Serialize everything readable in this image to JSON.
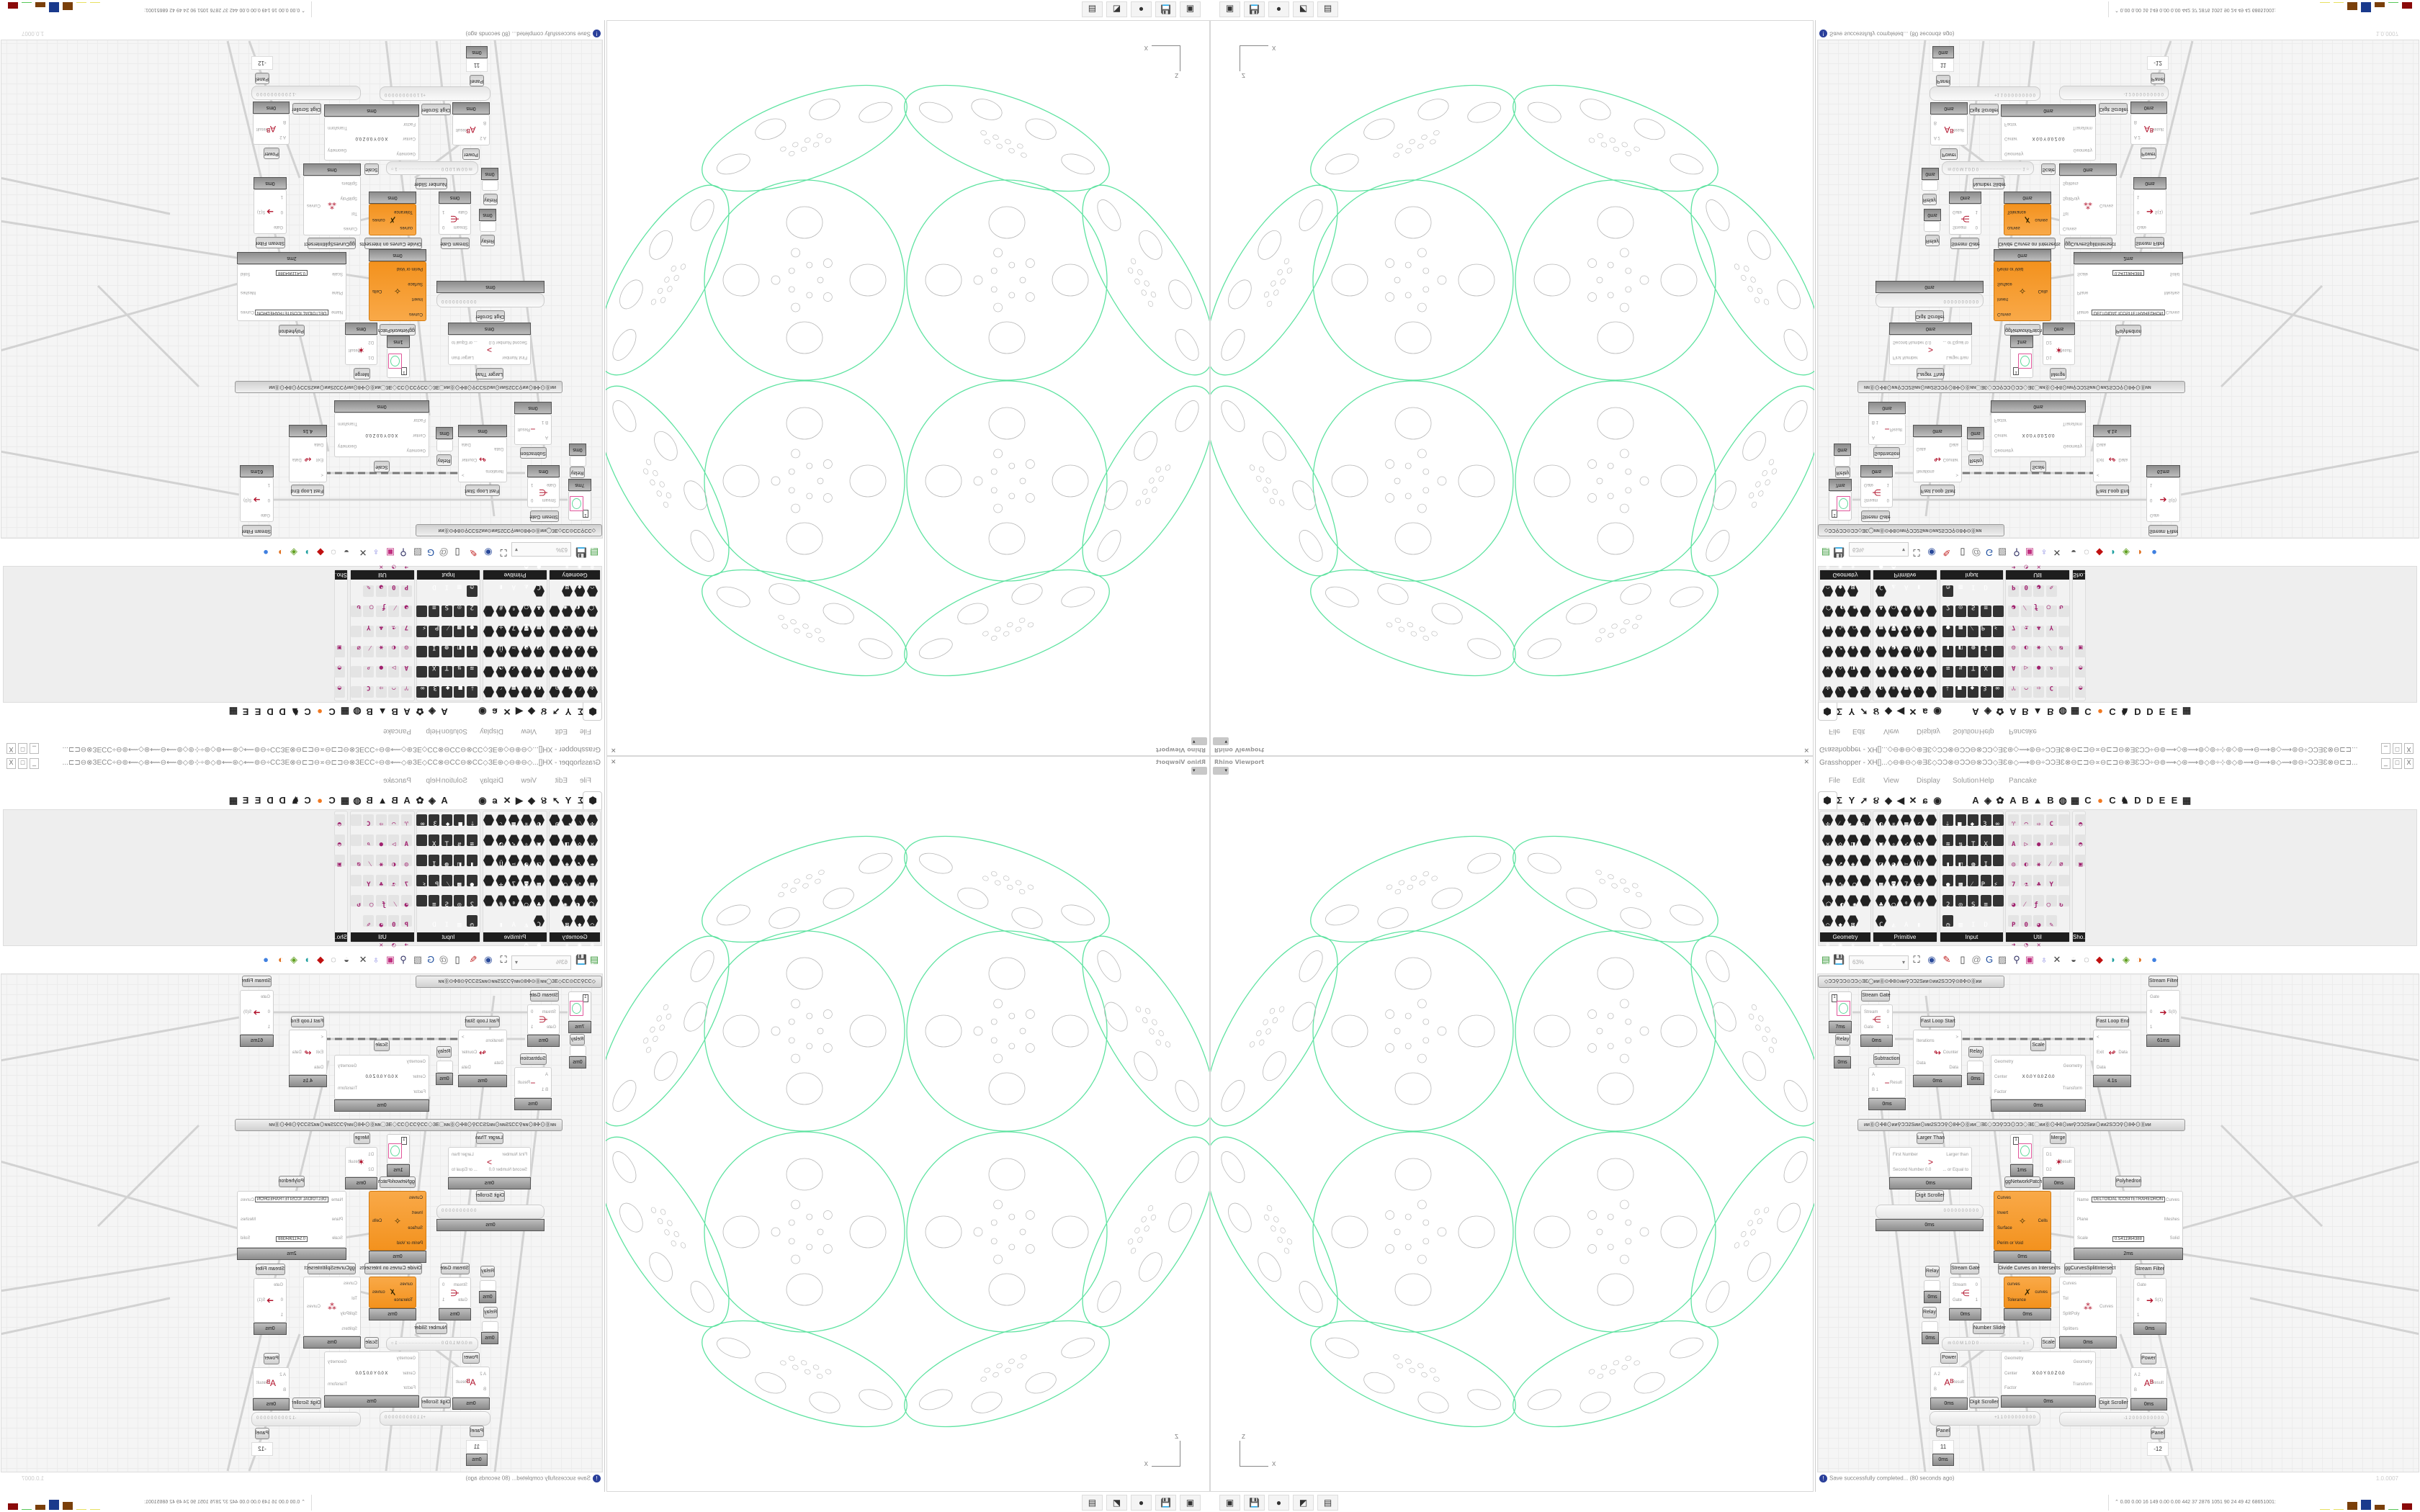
{
  "viewport": {
    "title": "Rhino Viewport",
    "close_icon": "close-icon",
    "axis": {
      "vertical": "Z",
      "horizontal": "X"
    },
    "curve_color": "#5fe3a1",
    "detail_color": "#b8b8b8",
    "taskbar_icons": [
      {
        "name": "network-drive-icon",
        "glyph": "▣"
      },
      {
        "name": "floppy-64-icon",
        "glyph": "💾"
      },
      {
        "name": "firefox-icon",
        "glyph": "●"
      },
      {
        "name": "rhino-icon",
        "glyph": "◩"
      },
      {
        "name": "calculator-icon",
        "glyph": "▤"
      }
    ]
  },
  "grasshopper": {
    "title": "Grasshopper - XH[]...◇⊖⊕⊖◇⊛ƎƐ◇ƆƆ⊗⊖ƆƆ⊖⊗ƆƆ◇ƎƐ⊛◇⟿⊚⊖÷ƆƆƎƐ⊗⊖⊏⊐⊖∝⊖⊏⊐⊖⊗ƎƐƆƆ÷⊖⊚⟿◇⊛⟿⊚◇⊚÷⊹⊚◇⊚⟿⊖⟿⊛◇⟿⊚⊖÷ƆƆƎƐ⊗⊖⊏⊐...",
    "window_buttons": [
      "_",
      "□",
      "X"
    ],
    "menu": [
      "File",
      "Edit",
      "View",
      "Display",
      "Solution",
      "Help",
      "Pancake"
    ],
    "tabs": [
      "⬢",
      "Σ",
      "Y",
      "➚",
      "૪",
      "◆",
      "◀",
      "✕",
      "ɕ",
      "◉",
      "A",
      "◈",
      "✿",
      "A",
      "B",
      "▲",
      "B",
      "◍",
      "▦",
      "C",
      "●",
      "C",
      "♞",
      "D",
      "D",
      "E",
      "E",
      "▦"
    ],
    "component_groups": [
      {
        "name": "Geometry",
        "style": "hex",
        "icons": "✣⁄✦◎✕◇◨⇹➚◈▦∿○⬡◐✺⌒◆⊠⊛◉✵⋒"
      },
      {
        "name": "Primitive",
        "style": "hex",
        "icons": "◐✳▦◜▣✧➶◔◪◕✂Ü▩◙7✛♣◯⁰#C◭A▮●◓"
      },
      {
        "name": "Input",
        "style": "sq",
        "icons": "⤓■◆3∞≋⇅TX▮◧◍I●▩⁄P⚡2◎S≡◷▥ID"
      },
      {
        "name": "Util",
        "style": "ut",
        "icons": "♈◠⇨CA▷●⌕◎◐⚹⁄⌀7⚗♣Y◕⁄ƒ◯↻P0◕✎➜◔✕"
      },
      {
        "name": "Sho...",
        "style": "ut",
        "icons": "◓◓▣"
      }
    ],
    "toolbar": {
      "icons": [
        "new-document-icon",
        "save-icon",
        "zoom-extents-icon",
        "preview-eye-icon",
        "sketch-brush-icon",
        "bake-icon",
        "at-icon",
        "gha-icon",
        "image-icon",
        "search-icon",
        "package-icon",
        "balloon-icon",
        "wires-icon",
        "sphere-icon",
        "cylinder-icon",
        "red-box-icon",
        "twist-icon",
        "green-box-icon",
        "half-sphere-icon",
        "blue-sphere-icon"
      ],
      "glyphs": [
        "▤",
        "💾",
        "⛶",
        "◉",
        "✎",
        "▯",
        "@",
        "G",
        "▨",
        "⚲",
        "▣",
        "♁",
        "✕",
        "◒",
        "◌",
        "◆",
        "◗",
        "◈",
        "◑",
        "●"
      ],
      "zoom": "63%"
    },
    "canvas": {
      "groups": [
        "◇ƆƆ⚲ƆƆ⊙ƆƆ◇ƎƐ◯ᴎᴎ⓪⊙✣8⊙ᴎᴎ⚲ƆƆ2Sᴎᴎ⊙ᴎᴎ2SƆƆ⚲⊙8✣⊙⓪ᴎᴎ",
        "ᴎᴎ⓪⊙✣8⊙ᴎᴎ⚲ƆƆ2Sᴎᴎ⊙ᴎᴎ2SƆƆ⚲⊙8✣⊙⓪ᴎᴎ◯ƎƐ◇ƆƆ⚲ƆƆ⊙ƆƆ◇ƎƐ◯ᴎᴎ⓪⊙✣8⊙ᴎᴎ⚲ƆƆ2Sᴎᴎ⊙ᴎᴎ2SƆƆ⚲⊙8✣⊙⓪ᴎᴎ"
      ],
      "components": [
        {
          "type": "param",
          "value": "1",
          "time": "7ms"
        },
        {
          "type": "comp",
          "label": "Relay",
          "inputs": [],
          "outputs": [],
          "time": "0ms"
        },
        {
          "type": "comp",
          "label": "Stream Gate",
          "inputs": [
            "Stream",
            "Gate"
          ],
          "outputs": [
            "0",
            "1"
          ],
          "icon": "⋲",
          "time": "0ms"
        },
        {
          "type": "comp",
          "label": "Subtraction",
          "inputs": [
            "A",
            "B 1"
          ],
          "outputs": [
            "Result"
          ],
          "icon": "−",
          "time": "0ms"
        },
        {
          "type": "comp",
          "label": "Fast Loop Start",
          "inputs": [
            "Iterations",
            "Data"
          ],
          "outputs": [
            ">",
            "Counter",
            "Data"
          ],
          "icon": "↬",
          "time": "0ms"
        },
        {
          "type": "comp",
          "label": "Relay",
          "inputs": [],
          "outputs": [],
          "time": "0ms"
        },
        {
          "type": "comp",
          "label": "Scale",
          "inputs": [
            "Geometry",
            "Center",
            "Factor"
          ],
          "outputs": [
            "Geometry",
            "Transform"
          ],
          "center": "X 0.0  Y 0.0  Z 0.0",
          "time": "0ms"
        },
        {
          "type": "comp",
          "label": "Fast Loop End",
          "inputs": [
            "<",
            "Exit",
            "Data"
          ],
          "outputs": [
            "Data"
          ],
          "icon": "↫",
          "time": "4.1s"
        },
        {
          "type": "comp",
          "label": "Stream Filter",
          "inputs": [
            "Gate",
            "0",
            "1"
          ],
          "outputs": [
            "S(0)"
          ],
          "icon": "➔",
          "time": "61ms"
        },
        {
          "type": "comp",
          "label": "Larger Than",
          "inputs": [
            "First Number",
            "Second Number 0.0"
          ],
          "outputs": [
            "Larger than",
            "... or Equal to"
          ],
          "icon": ">",
          "time": "0ms"
        },
        {
          "type": "slider",
          "label": "Digit Scroller",
          "value": "0 0 0 0 0 0 0 0 0 0",
          "time": "0ms"
        },
        {
          "type": "param",
          "value": "1",
          "time": "1ms"
        },
        {
          "type": "label",
          "label": "ggNetworkPatch"
        },
        {
          "type": "comp",
          "label": "Merge",
          "inputs": [
            "D1",
            "D2"
          ],
          "outputs": [
            "Result"
          ],
          "icon": "✶",
          "time": "0ms"
        },
        {
          "type": "comp",
          "label": "Polyhedron",
          "inputs": [
            "Name",
            "Plane",
            "Scale"
          ],
          "outputs": [
            "Curves",
            "Meshes",
            "Solid"
          ],
          "center": "DELTOIDAL ICOSITETRAHEDRON",
          "extra": "0.5411964388",
          "time": "2ms"
        },
        {
          "type": "comp",
          "orange": true,
          "inputs": [
            "Curves",
            "Invert",
            "Surface",
            "Perim or Void"
          ],
          "outputs": [
            "Cells"
          ],
          "icon": "✧",
          "time": "0ms"
        },
        {
          "type": "comp",
          "orange": true,
          "label": "Divide Curves on Intersects",
          "inputs": [
            "curves",
            "Tolerance"
          ],
          "outputs": [
            "curves"
          ],
          "icon": "✗",
          "time": "0ms"
        },
        {
          "type": "comp",
          "label": "ggCurvesSplitIntersect",
          "inputs": [
            "Curves",
            "Tol",
            "SplitPoly",
            "Splitters"
          ],
          "outputs": [
            "Curves"
          ],
          "icon": "⁂",
          "time": "0ms"
        },
        {
          "type": "comp",
          "label": "Stream Filter",
          "inputs": [
            "Gate",
            "0",
            "1"
          ],
          "outputs": [
            "S(1)"
          ],
          "icon": "➔",
          "time": "0ms"
        },
        {
          "type": "comp",
          "label": "Relay",
          "inputs": [],
          "outputs": [],
          "time": "0ms"
        },
        {
          "type": "comp",
          "label": "Relay",
          "inputs": [],
          "outputs": [],
          "time": "0ms"
        },
        {
          "type": "comp",
          "label": "Stream Gate",
          "inputs": [
            "Stream",
            "Gate"
          ],
          "outputs": [
            "0",
            "1"
          ],
          "icon": "⋲",
          "time": "0ms"
        },
        {
          "type": "slider",
          "label": "Number Slider",
          "value": "m 0.0  M 1.0  D 0   ·····························  1 ○"
        },
        {
          "type": "comp",
          "label": "Scale",
          "inputs": [
            "Geometry",
            "Center",
            "Factor"
          ],
          "outputs": [
            "Geometry",
            "Transform"
          ],
          "center": "X 0.0  Y 0.0  Z 0.0",
          "time": "0ms"
        },
        {
          "type": "comp",
          "label": "Power",
          "inputs": [
            "A 2",
            "B"
          ],
          "outputs": [
            "Result"
          ],
          "icon": "Aᴮ",
          "time": "0ms"
        },
        {
          "type": "slider",
          "label": "Digit Scroller",
          "value": "+1 1 0 0 0 0 0 0 0 0 0"
        },
        {
          "type": "comp",
          "label": "Power",
          "inputs": [
            "A 2",
            "B"
          ],
          "outputs": [
            "Result"
          ],
          "icon": "Aᴮ",
          "time": "0ms"
        },
        {
          "type": "slider",
          "label": "Digit Scroller",
          "value": "-1 2 0 0 0 0 0 0 0 0 0"
        },
        {
          "type": "panel",
          "label": "Panel",
          "value": "11",
          "time": "0ms"
        },
        {
          "type": "panel",
          "label": "Panel",
          "value": "-12"
        }
      ]
    },
    "status": {
      "icon": "info-icon",
      "message": "Save successfully completed... (80 seconds ago)",
      "version": "1.0.0007"
    },
    "taskbar": {
      "stats": "⌃  0.00 0.00  16   149  0.00 0.00  442   37   2876 1051  90   24   49   42  68651001:",
      "meter_colors": [
        "#e8e060",
        "#e8e060",
        "#7a3f0a",
        "#1a3a8c",
        "#7a3f0a",
        "#58c858",
        "#8a0a0a"
      ]
    }
  }
}
